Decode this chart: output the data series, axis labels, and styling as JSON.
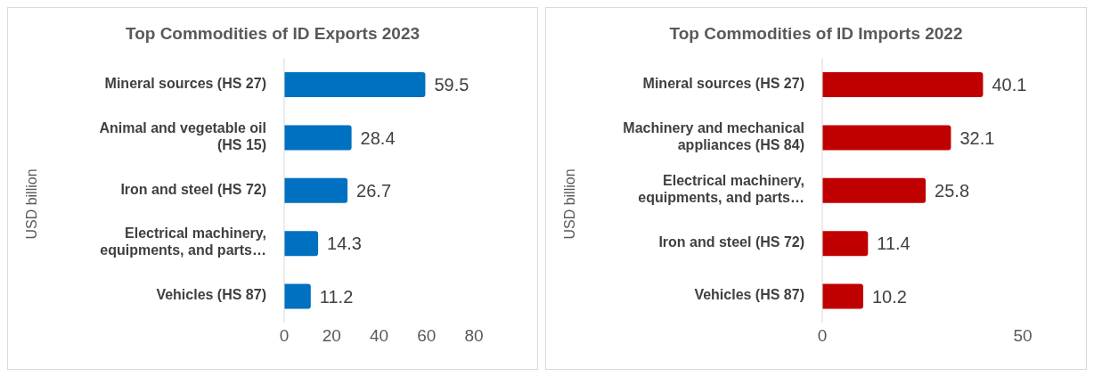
{
  "chart_data": [
    {
      "type": "bar",
      "orientation": "horizontal",
      "title": "Top Commodities of ID Exports 2023",
      "ylabel": "USD billion",
      "categories": [
        "Mineral sources (HS 27)",
        "Animal and vegetable oil (HS 15)",
        "Iron and steel (HS 72)",
        "Electrical machinery, equipments, and parts…",
        "Vehicles (HS 87)"
      ],
      "values": [
        59.5,
        28.4,
        26.7,
        14.3,
        11.2
      ],
      "color": "#0070c0",
      "xlim": [
        0,
        80
      ],
      "xticks": [
        0,
        20,
        40,
        60,
        80
      ],
      "data_labels": true,
      "grid": false,
      "legend": false
    },
    {
      "type": "bar",
      "orientation": "horizontal",
      "title": "Top Commodities of ID Imports 2022",
      "ylabel": "USD billion",
      "categories": [
        "Mineral sources (HS 27)",
        "Machinery and mechanical appliances (HS 84)",
        "Electrical machinery, equipments, and parts…",
        "Iron and steel (HS 72)",
        "Vehicles (HS 87)"
      ],
      "values": [
        40.1,
        32.1,
        25.8,
        11.4,
        10.2
      ],
      "color": "#c00000",
      "xlim": [
        0,
        50
      ],
      "xticks": [
        0,
        50
      ],
      "data_labels": true,
      "grid": false,
      "legend": false
    }
  ]
}
